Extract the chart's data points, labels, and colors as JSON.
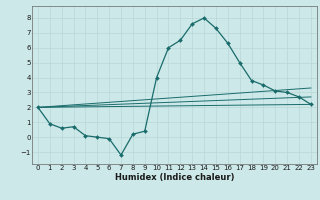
{
  "title": "",
  "xlabel": "Humidex (Indice chaleur)",
  "xlim": [
    -0.5,
    23.5
  ],
  "ylim": [
    -1.8,
    8.8
  ],
  "xticks": [
    0,
    1,
    2,
    3,
    4,
    5,
    6,
    7,
    8,
    9,
    10,
    11,
    12,
    13,
    14,
    15,
    16,
    17,
    18,
    19,
    20,
    21,
    22,
    23
  ],
  "yticks": [
    -1,
    0,
    1,
    2,
    3,
    4,
    5,
    6,
    7,
    8
  ],
  "bg_color": "#cce8e8",
  "line_color": "#1a6b6b",
  "grid_color": "#b8d8d8",
  "series_main": {
    "x": [
      0,
      1,
      2,
      3,
      4,
      5,
      6,
      7,
      8,
      9,
      10,
      11,
      12,
      13,
      14,
      15,
      16,
      17,
      18,
      19,
      20,
      21,
      22,
      23
    ],
    "y": [
      2.0,
      0.9,
      0.6,
      0.7,
      0.1,
      0.0,
      -0.1,
      -1.2,
      0.2,
      0.4,
      4.0,
      6.0,
      6.5,
      7.6,
      8.0,
      7.3,
      6.3,
      5.0,
      3.8,
      3.5,
      3.1,
      3.0,
      2.7,
      2.2
    ]
  },
  "series_line1": {
    "x": [
      0,
      23
    ],
    "y": [
      2.0,
      2.2
    ]
  },
  "series_line2": {
    "x": [
      0,
      23
    ],
    "y": [
      2.0,
      2.7
    ]
  },
  "series_line3": {
    "x": [
      0,
      23
    ],
    "y": [
      2.0,
      3.3
    ]
  }
}
